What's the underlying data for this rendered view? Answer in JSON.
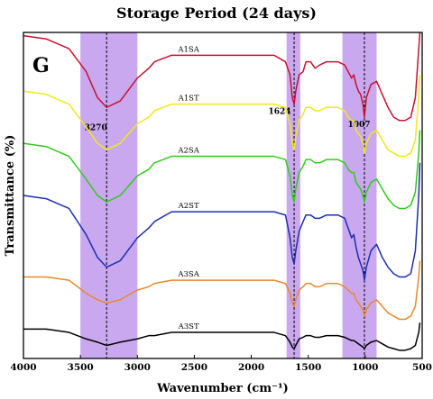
{
  "chart_data": {
    "type": "line",
    "title": "Storage Period (24 days)",
    "panel_letter": "G",
    "xlabel": "Wavenumber (cm⁻¹)",
    "ylabel": "Transmittance (%)",
    "xlim": [
      4000,
      500
    ],
    "x_reversed": true,
    "ylim": [
      0,
      100
    ],
    "x_ticks": [
      4000,
      3500,
      3000,
      2500,
      2000,
      1500,
      1000,
      500
    ],
    "x_tick_labels": [
      "4000",
      "3500",
      "3000",
      "2500",
      "2000",
      "1500",
      "1000",
      "500"
    ],
    "y_ticks_visible": false,
    "highlight_bands": [
      {
        "from": 3500,
        "to": 3000,
        "color": "#c9a8f0"
      },
      {
        "from": 1690,
        "to": 1570,
        "color": "#c9a8f0"
      },
      {
        "from": 1200,
        "to": 900,
        "color": "#c9a8f0"
      }
    ],
    "marker_lines": [
      {
        "x": 3270,
        "label": "3270"
      },
      {
        "x": 1624,
        "label": "1624"
      },
      {
        "x": 1007,
        "label": "1007"
      }
    ],
    "series": [
      {
        "name": "A1SA",
        "color": "#c8102e",
        "data": [
          [
            4000,
            99
          ],
          [
            3800,
            98
          ],
          [
            3600,
            95
          ],
          [
            3450,
            88
          ],
          [
            3350,
            80
          ],
          [
            3270,
            77
          ],
          [
            3150,
            79
          ],
          [
            3000,
            86
          ],
          [
            2900,
            89
          ],
          [
            2850,
            91
          ],
          [
            2700,
            93
          ],
          [
            2500,
            93
          ],
          [
            2300,
            93
          ],
          [
            2100,
            93
          ],
          [
            1950,
            93
          ],
          [
            1800,
            93
          ],
          [
            1700,
            91
          ],
          [
            1660,
            87
          ],
          [
            1640,
            80
          ],
          [
            1624,
            78
          ],
          [
            1610,
            82
          ],
          [
            1580,
            87
          ],
          [
            1545,
            88
          ],
          [
            1520,
            91
          ],
          [
            1480,
            91
          ],
          [
            1440,
            89
          ],
          [
            1400,
            90
          ],
          [
            1340,
            91
          ],
          [
            1240,
            91
          ],
          [
            1180,
            90
          ],
          [
            1150,
            88
          ],
          [
            1120,
            86
          ],
          [
            1100,
            87
          ],
          [
            1080,
            84
          ],
          [
            1060,
            82
          ],
          [
            1040,
            81
          ],
          [
            1020,
            78
          ],
          [
            1007,
            74
          ],
          [
            990,
            80
          ],
          [
            950,
            84
          ],
          [
            900,
            85
          ],
          [
            850,
            81
          ],
          [
            800,
            77
          ],
          [
            750,
            74
          ],
          [
            700,
            73
          ],
          [
            650,
            73
          ],
          [
            600,
            74
          ],
          [
            560,
            80
          ],
          [
            530,
            95
          ],
          [
            520,
            100
          ]
        ]
      },
      {
        "name": "A1ST",
        "color": "#f0e818",
        "data": [
          [
            4000,
            82
          ],
          [
            3800,
            81
          ],
          [
            3600,
            78
          ],
          [
            3450,
            71
          ],
          [
            3350,
            66
          ],
          [
            3270,
            64
          ],
          [
            3150,
            66
          ],
          [
            3000,
            72
          ],
          [
            2900,
            74
          ],
          [
            2850,
            76
          ],
          [
            2700,
            78
          ],
          [
            2500,
            78
          ],
          [
            2300,
            78
          ],
          [
            2100,
            78
          ],
          [
            1950,
            78
          ],
          [
            1800,
            78
          ],
          [
            1700,
            77
          ],
          [
            1660,
            72
          ],
          [
            1640,
            66
          ],
          [
            1624,
            64
          ],
          [
            1610,
            68
          ],
          [
            1580,
            73
          ],
          [
            1545,
            75
          ],
          [
            1520,
            77
          ],
          [
            1480,
            77
          ],
          [
            1440,
            76
          ],
          [
            1400,
            76
          ],
          [
            1340,
            77
          ],
          [
            1240,
            77
          ],
          [
            1180,
            76
          ],
          [
            1150,
            74
          ],
          [
            1120,
            73
          ],
          [
            1100,
            73
          ],
          [
            1080,
            70
          ],
          [
            1060,
            69
          ],
          [
            1040,
            68
          ],
          [
            1020,
            66
          ],
          [
            1007,
            63
          ],
          [
            990,
            66
          ],
          [
            950,
            69
          ],
          [
            900,
            70
          ],
          [
            850,
            67
          ],
          [
            800,
            64
          ],
          [
            750,
            63
          ],
          [
            700,
            62
          ],
          [
            650,
            62
          ],
          [
            600,
            63
          ],
          [
            560,
            67
          ],
          [
            530,
            80
          ],
          [
            520,
            87
          ]
        ]
      },
      {
        "name": "A2SA",
        "color": "#2ecc1a",
        "data": [
          [
            4000,
            66
          ],
          [
            3800,
            65
          ],
          [
            3600,
            62
          ],
          [
            3450,
            55
          ],
          [
            3350,
            50
          ],
          [
            3270,
            48
          ],
          [
            3150,
            50
          ],
          [
            3000,
            56
          ],
          [
            2900,
            58
          ],
          [
            2850,
            60
          ],
          [
            2700,
            62
          ],
          [
            2500,
            62
          ],
          [
            2300,
            62
          ],
          [
            2100,
            62
          ],
          [
            1950,
            62
          ],
          [
            1800,
            62
          ],
          [
            1700,
            61
          ],
          [
            1660,
            56
          ],
          [
            1640,
            50
          ],
          [
            1624,
            48
          ],
          [
            1610,
            52
          ],
          [
            1580,
            57
          ],
          [
            1545,
            59
          ],
          [
            1520,
            61
          ],
          [
            1480,
            61
          ],
          [
            1440,
            60
          ],
          [
            1400,
            60
          ],
          [
            1340,
            61
          ],
          [
            1240,
            61
          ],
          [
            1180,
            60
          ],
          [
            1150,
            58
          ],
          [
            1120,
            57
          ],
          [
            1100,
            57
          ],
          [
            1080,
            54
          ],
          [
            1060,
            53
          ],
          [
            1040,
            52
          ],
          [
            1020,
            50
          ],
          [
            1007,
            48
          ],
          [
            990,
            51
          ],
          [
            950,
            54
          ],
          [
            900,
            55
          ],
          [
            850,
            52
          ],
          [
            800,
            49
          ],
          [
            750,
            47
          ],
          [
            700,
            46
          ],
          [
            650,
            46
          ],
          [
            600,
            47
          ],
          [
            560,
            51
          ],
          [
            530,
            63
          ],
          [
            520,
            70
          ]
        ]
      },
      {
        "name": "A2ST",
        "color": "#1c2fae",
        "data": [
          [
            4000,
            50
          ],
          [
            3800,
            49
          ],
          [
            3600,
            46
          ],
          [
            3450,
            38
          ],
          [
            3350,
            31
          ],
          [
            3270,
            28
          ],
          [
            3150,
            30
          ],
          [
            3000,
            37
          ],
          [
            2900,
            40
          ],
          [
            2850,
            42
          ],
          [
            2700,
            45
          ],
          [
            2500,
            45
          ],
          [
            2300,
            45
          ],
          [
            2100,
            45
          ],
          [
            1950,
            45
          ],
          [
            1800,
            45
          ],
          [
            1700,
            44
          ],
          [
            1660,
            37
          ],
          [
            1640,
            31
          ],
          [
            1624,
            29
          ],
          [
            1610,
            33
          ],
          [
            1580,
            39
          ],
          [
            1545,
            42
          ],
          [
            1520,
            44
          ],
          [
            1480,
            44
          ],
          [
            1440,
            43
          ],
          [
            1400,
            43
          ],
          [
            1340,
            44
          ],
          [
            1240,
            44
          ],
          [
            1180,
            43
          ],
          [
            1150,
            40
          ],
          [
            1120,
            37
          ],
          [
            1100,
            38
          ],
          [
            1080,
            34
          ],
          [
            1060,
            31
          ],
          [
            1040,
            29
          ],
          [
            1020,
            27
          ],
          [
            1007,
            24
          ],
          [
            990,
            28
          ],
          [
            950,
            33
          ],
          [
            900,
            35
          ],
          [
            850,
            31
          ],
          [
            800,
            28
          ],
          [
            750,
            26
          ],
          [
            700,
            25
          ],
          [
            650,
            25
          ],
          [
            600,
            26
          ],
          [
            560,
            33
          ],
          [
            530,
            50
          ],
          [
            520,
            60
          ]
        ]
      },
      {
        "name": "A3SA",
        "color": "#e8892a",
        "data": [
          [
            4000,
            25
          ],
          [
            3800,
            25
          ],
          [
            3600,
            24
          ],
          [
            3450,
            20
          ],
          [
            3350,
            18
          ],
          [
            3270,
            17
          ],
          [
            3150,
            18
          ],
          [
            3000,
            21
          ],
          [
            2900,
            22
          ],
          [
            2850,
            23
          ],
          [
            2700,
            24
          ],
          [
            2500,
            24
          ],
          [
            2300,
            24
          ],
          [
            2100,
            24
          ],
          [
            1950,
            24
          ],
          [
            1800,
            24
          ],
          [
            1700,
            23
          ],
          [
            1660,
            20
          ],
          [
            1640,
            17
          ],
          [
            1624,
            16
          ],
          [
            1610,
            18
          ],
          [
            1580,
            21
          ],
          [
            1545,
            22
          ],
          [
            1520,
            23
          ],
          [
            1480,
            23
          ],
          [
            1440,
            22
          ],
          [
            1400,
            22
          ],
          [
            1340,
            23
          ],
          [
            1240,
            23
          ],
          [
            1180,
            22
          ],
          [
            1150,
            21
          ],
          [
            1120,
            20
          ],
          [
            1100,
            20
          ],
          [
            1080,
            18
          ],
          [
            1060,
            17
          ],
          [
            1040,
            16
          ],
          [
            1020,
            15
          ],
          [
            1007,
            13
          ],
          [
            990,
            15
          ],
          [
            950,
            17
          ],
          [
            900,
            18
          ],
          [
            850,
            16
          ],
          [
            800,
            14
          ],
          [
            750,
            13
          ],
          [
            700,
            12
          ],
          [
            650,
            12
          ],
          [
            600,
            13
          ],
          [
            560,
            16
          ],
          [
            530,
            25
          ],
          [
            520,
            30
          ]
        ]
      },
      {
        "name": "A3ST",
        "color": "#000000",
        "data": [
          [
            4000,
            9
          ],
          [
            3800,
            9
          ],
          [
            3600,
            8
          ],
          [
            3450,
            6
          ],
          [
            3350,
            5
          ],
          [
            3270,
            4
          ],
          [
            3150,
            5
          ],
          [
            3000,
            6
          ],
          [
            2900,
            7
          ],
          [
            2850,
            7
          ],
          [
            2700,
            8
          ],
          [
            2500,
            8
          ],
          [
            2300,
            8
          ],
          [
            2100,
            8
          ],
          [
            1950,
            8
          ],
          [
            1800,
            8
          ],
          [
            1700,
            7
          ],
          [
            1660,
            5
          ],
          [
            1640,
            3.5
          ],
          [
            1624,
            3
          ],
          [
            1610,
            4
          ],
          [
            1580,
            6
          ],
          [
            1545,
            6.5
          ],
          [
            1520,
            7
          ],
          [
            1480,
            7
          ],
          [
            1440,
            6.5
          ],
          [
            1400,
            6.5
          ],
          [
            1340,
            7
          ],
          [
            1240,
            7
          ],
          [
            1180,
            6.5
          ],
          [
            1150,
            6
          ],
          [
            1120,
            5.5
          ],
          [
            1100,
            5.5
          ],
          [
            1080,
            5
          ],
          [
            1060,
            4.5
          ],
          [
            1040,
            4
          ],
          [
            1020,
            3.5
          ],
          [
            1007,
            3
          ],
          [
            990,
            4
          ],
          [
            950,
            5
          ],
          [
            900,
            5.5
          ],
          [
            850,
            4.5
          ],
          [
            800,
            3.5
          ],
          [
            750,
            3
          ],
          [
            700,
            2.5
          ],
          [
            650,
            2.5
          ],
          [
            600,
            3
          ],
          [
            560,
            4
          ],
          [
            530,
            8
          ],
          [
            520,
            11
          ]
        ]
      }
    ]
  }
}
